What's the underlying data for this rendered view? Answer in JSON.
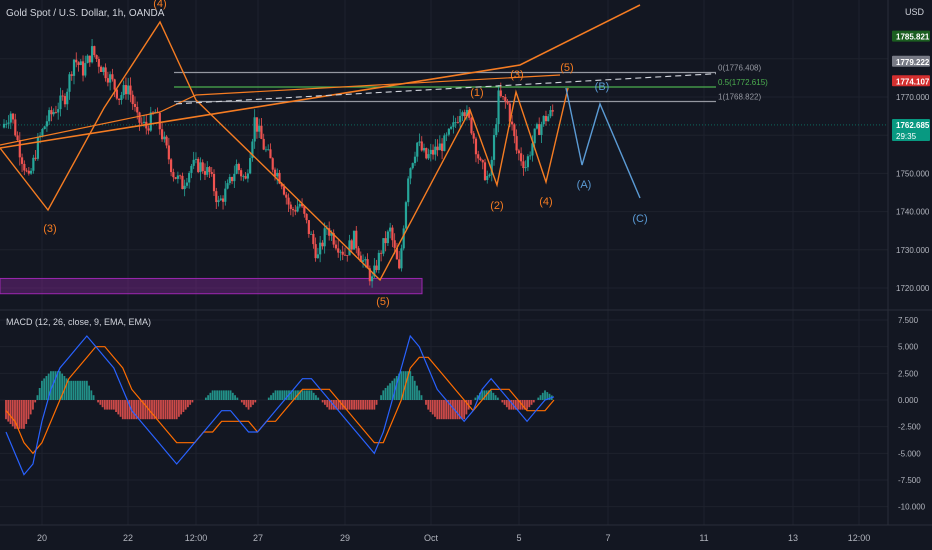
{
  "header": {
    "symbol_title": "Gold Spot / U.S. Dollar, 1h, OANDA",
    "currency": "USD"
  },
  "colors": {
    "background": "#131722",
    "up_candle": "#26a69a",
    "down_candle": "#ef5350",
    "orange": "#f57c22",
    "blue_projection": "#5b9bd5",
    "fib_green": "#4caf50",
    "fib_gray": "#9598a1",
    "zone_purple": "#9c27b0",
    "macd_line": "#2962ff",
    "signal_line": "#ff6d00"
  },
  "price_axis": {
    "ticks": [
      "1780.000",
      "1770.000",
      "1760.000",
      "1750.000",
      "1740.000",
      "1730.000",
      "1720.000"
    ],
    "labels": [
      {
        "text": "1785.821",
        "value": 1785.821,
        "bg": "#1b5e20",
        "fg": "#ffffff"
      },
      {
        "text": "1779.222",
        "value": 1779.222,
        "bg": "#787b86",
        "fg": "#ffffff"
      },
      {
        "text": "1774.107",
        "value": 1774.107,
        "bg": "#d32f2f",
        "fg": "#ffffff"
      },
      {
        "text": "1762.685",
        "value": 1762.685,
        "bg": "#089981",
        "fg": "#ffffff",
        "sub": "29:35"
      }
    ]
  },
  "macd_panel": {
    "title": "MACD (12, 26, close, 9, EMA, EMA)",
    "ticks": [
      "7.500",
      "5.000",
      "2.500",
      "0.000",
      "-2.500",
      "-5.000",
      "-7.500",
      "-10.000"
    ]
  },
  "time_axis": {
    "labels": [
      "20",
      "22",
      "12:00",
      "27",
      "29",
      "Oct",
      "5",
      "7",
      "11",
      "13",
      "12:00"
    ]
  },
  "fib_levels": [
    {
      "label": "0(1776.408)",
      "value": 1776.408,
      "color": "#9598a1"
    },
    {
      "label": "0.5(1772.615)",
      "value": 1772.615,
      "color": "#4caf50"
    },
    {
      "label": "1(1768.822)",
      "value": 1768.822,
      "color": "#9598a1"
    }
  ],
  "wave_labels": [
    {
      "text": "(4)",
      "color": "#f57c22",
      "series": "orange"
    },
    {
      "text": "(3)",
      "color": "#f57c22",
      "series": "orange"
    },
    {
      "text": "(5)",
      "color": "#f57c22",
      "series": "orange"
    },
    {
      "text": "(1)",
      "color": "#f57c22",
      "series": "orange"
    },
    {
      "text": "(2)",
      "color": "#f57c22",
      "series": "orange"
    },
    {
      "text": "(3)",
      "color": "#f57c22",
      "series": "orange"
    },
    {
      "text": "(4)",
      "color": "#f57c22",
      "series": "orange"
    },
    {
      "text": "(5)",
      "color": "#f57c22",
      "series": "orange"
    },
    {
      "text": "(A)",
      "color": "#5b9bd5",
      "series": "blue"
    },
    {
      "text": "(B)",
      "color": "#5b9bd5",
      "series": "blue"
    },
    {
      "text": "(C)",
      "color": "#5b9bd5",
      "series": "blue"
    }
  ],
  "chart_data": {
    "type": "candlestick",
    "title": "Gold Spot / U.S. Dollar, 1h, OANDA",
    "price_ylim": [
      1715,
      1788
    ],
    "macd_ylim": [
      -11,
      8
    ],
    "price_path": [
      1762,
      1766,
      1756,
      1748,
      1758,
      1764,
      1767,
      1770,
      1780,
      1777,
      1782,
      1778,
      1775,
      1770,
      1773,
      1764,
      1762,
      1766,
      1758,
      1750,
      1747,
      1752,
      1752,
      1750,
      1742,
      1746,
      1752,
      1748,
      1764,
      1757,
      1752,
      1748,
      1740,
      1742,
      1735,
      1728,
      1736,
      1732,
      1729,
      1733,
      1727,
      1722,
      1730,
      1735,
      1724,
      1750,
      1758,
      1754,
      1756,
      1758,
      1762,
      1768,
      1762,
      1752,
      1748,
      1770,
      1768,
      1756,
      1752,
      1760,
      1764,
      1766
    ],
    "macd_values": [
      -3,
      -5,
      -7,
      -6,
      -2,
      1,
      3,
      4,
      5,
      6,
      5,
      4,
      3,
      1,
      -1,
      -2,
      -3,
      -4,
      -5,
      -6,
      -5,
      -4,
      -3,
      -2,
      -1,
      -1,
      -2,
      -3,
      -3,
      -2,
      -1,
      0,
      1,
      2,
      2,
      1,
      0,
      -1,
      -2,
      -3,
      -4,
      -5,
      -3,
      0,
      3,
      6,
      5,
      3,
      1,
      0,
      -1,
      -2,
      -1,
      1,
      2,
      1,
      0,
      -1,
      -2,
      -1,
      0,
      0.3
    ],
    "signal_values": [
      -1,
      -2,
      -4,
      -5,
      -4,
      -2,
      0,
      2,
      3,
      4,
      5,
      5,
      4,
      3,
      1,
      0,
      -1,
      -2,
      -3,
      -4,
      -4,
      -4,
      -3,
      -3,
      -2,
      -2,
      -2,
      -2,
      -3,
      -2,
      -2,
      -1,
      0,
      1,
      1,
      1,
      1,
      0,
      -1,
      -2,
      -3,
      -4,
      -4,
      -2,
      0,
      3,
      4,
      4,
      3,
      2,
      1,
      0,
      -1,
      0,
      1,
      1,
      1,
      0,
      -1,
      -1,
      -1,
      0
    ],
    "fib_levels": [
      1776.408,
      1772.615,
      1768.822
    ],
    "support_zone": [
      1718.5,
      1722.5
    ],
    "current_price": 1762.685
  }
}
